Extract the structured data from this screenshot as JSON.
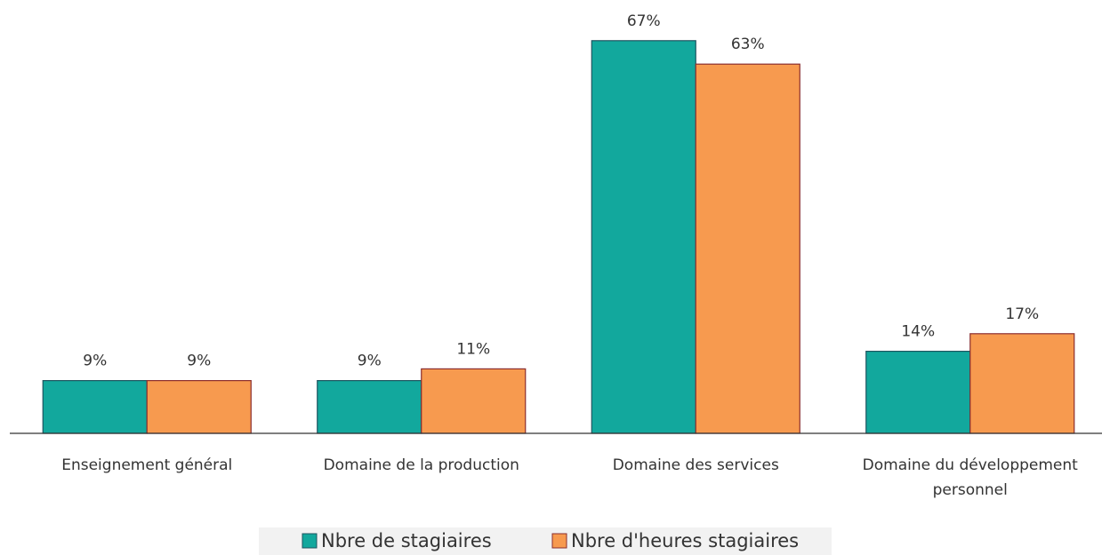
{
  "chart_data": {
    "type": "bar",
    "categories": [
      "Enseignement général",
      "Domaine de la production",
      "Domaine des services",
      "Domaine du développement personnel"
    ],
    "series": [
      {
        "name": "Nbre de stagiaires",
        "color": "#12a89d",
        "values": [
          9,
          9,
          67,
          14
        ],
        "value_labels": [
          "9%",
          "9%",
          "67%",
          "14%"
        ]
      },
      {
        "name": "Nbre d'heures stagiaires",
        "color": "#f79a4f",
        "values": [
          9,
          11,
          63,
          17
        ],
        "value_labels": [
          "9%",
          "11%",
          "63%",
          "17%"
        ]
      }
    ],
    "legend": "bottom"
  }
}
